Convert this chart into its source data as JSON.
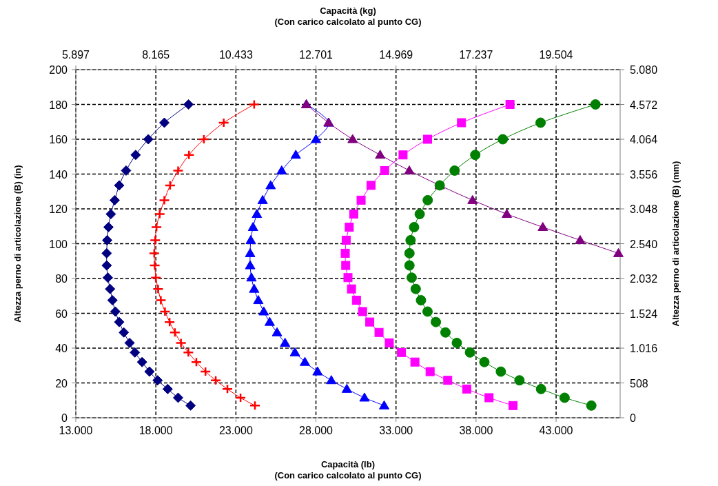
{
  "chart_data": {
    "type": "line",
    "xlabel": "Capacità (lb)\n(Con carico calcolato al punto CG)",
    "x2label": "Capacità (kg)\n(Con carico calcolato al punto CG)",
    "ylabel": "Altezza perno di articolazione (B) (in)",
    "y2label": "Altezza perno di articolazione (B) (mm)",
    "xlim": [
      13000,
      47000
    ],
    "xticks": [
      {
        "value": 13000,
        "label": "13.000"
      },
      {
        "value": 18000,
        "label": "18.000"
      },
      {
        "value": 23000,
        "label": "23.000"
      },
      {
        "value": 28000,
        "label": "28.000"
      },
      {
        "value": 33000,
        "label": "33.000"
      },
      {
        "value": 38000,
        "label": "38.000"
      },
      {
        "value": 43000,
        "label": "43.000"
      }
    ],
    "x2lim": [
      5897,
      21319
    ],
    "x2ticks": [
      {
        "value": 5897,
        "label": "5.897"
      },
      {
        "value": 8165,
        "label": "8.165"
      },
      {
        "value": 10433,
        "label": "10.433"
      },
      {
        "value": 12701,
        "label": "12.701"
      },
      {
        "value": 14969,
        "label": "14.969"
      },
      {
        "value": 17237,
        "label": "17.237"
      },
      {
        "value": 19504,
        "label": "19.504"
      }
    ],
    "ylim": [
      0,
      200
    ],
    "yticks": [
      0,
      20,
      40,
      60,
      80,
      100,
      120,
      140,
      160,
      180,
      200
    ],
    "y2lim": [
      0,
      5080
    ],
    "y2ticks": [
      0,
      508,
      {
        "value": 1016,
        "label": "1.016"
      },
      {
        "value": 1524,
        "label": "1.524"
      },
      {
        "value": 2032,
        "label": "2.032"
      },
      {
        "value": 2540,
        "label": "2.540"
      },
      {
        "value": 3048,
        "label": "3.048"
      },
      {
        "value": 3556,
        "label": "3.556"
      },
      {
        "value": 4064,
        "label": "4.064"
      },
      {
        "value": 4572,
        "label": "4.572"
      },
      {
        "value": 5080,
        "label": "5.080"
      }
    ],
    "grid": true,
    "line_style": "solid",
    "series": [
      {
        "color": "#000080",
        "marker": "diamond",
        "x": [
          20040,
          18530,
          17530,
          16740,
          16140,
          15710,
          15430,
          15190,
          15040,
          14960,
          14930,
          14930,
          15000,
          15140,
          15290,
          15470,
          15710,
          16000,
          16360,
          16690,
          17140,
          17600,
          18110,
          18740,
          19390,
          20170
        ],
        "values": [
          180,
          169.5,
          160,
          151,
          142,
          133.5,
          125,
          117,
          109.5,
          102,
          94.5,
          87.5,
          80.5,
          74,
          67.5,
          61,
          55,
          49,
          43,
          37.5,
          32,
          26.5,
          21.5,
          16.5,
          11.5,
          7
        ]
      },
      {
        "color": "#ff0000",
        "marker": "cross",
        "x": [
          24140,
          22240,
          21000,
          20070,
          19390,
          18890,
          18530,
          18240,
          18040,
          17960,
          17900,
          17930,
          18000,
          18140,
          18310,
          18570,
          18860,
          19190,
          19570,
          20030,
          20530,
          21100,
          21740,
          22470,
          23290,
          24190
        ],
        "values": [
          180,
          169.5,
          160,
          151,
          142,
          133.5,
          125,
          117,
          109.5,
          102,
          94.5,
          87.5,
          80.5,
          74,
          67.5,
          61,
          55,
          49,
          43,
          37.5,
          32,
          26.5,
          21.5,
          16.5,
          11.5,
          7
        ]
      },
      {
        "color": "#0000ff",
        "marker": "triangle",
        "x": [
          27400,
          28790,
          28000,
          26740,
          25860,
          25170,
          24670,
          24310,
          24070,
          23930,
          23890,
          23890,
          23970,
          24140,
          24400,
          24740,
          25110,
          25570,
          26070,
          26690,
          27310,
          28100,
          28960,
          29930,
          31030,
          32260
        ],
        "values": [
          180,
          169.5,
          160,
          151,
          142,
          133.5,
          125,
          117,
          109.5,
          102,
          94.5,
          87.5,
          80.5,
          74,
          67.5,
          61,
          55,
          49,
          43,
          37.5,
          32,
          26.5,
          21.5,
          16.5,
          11.5,
          7
        ]
      },
      {
        "color": "#800080",
        "marker": "triangle",
        "x": [
          27400,
          28790,
          30290,
          32010,
          33830,
          35730,
          37780,
          39920,
          42170,
          44500,
          46890
        ],
        "values": [
          180,
          169.5,
          160,
          151,
          142,
          133.5,
          125,
          117,
          109.5,
          102,
          94.5
        ]
      },
      {
        "color": "#ff00ff",
        "marker": "square",
        "x": [
          40120,
          37090,
          34970,
          33440,
          32290,
          31440,
          30820,
          30360,
          30080,
          29890,
          29830,
          29860,
          30000,
          30220,
          30530,
          30910,
          31360,
          31940,
          32580,
          33340,
          34180,
          35130,
          36230,
          37420,
          38810,
          40310
        ],
        "values": [
          180,
          169.5,
          160,
          151,
          142,
          133.5,
          125,
          117,
          109.5,
          102,
          94.5,
          87.5,
          80.5,
          74,
          67.5,
          61,
          55,
          49,
          43,
          37.5,
          32,
          26.5,
          21.5,
          16.5,
          11.5,
          7
        ]
      },
      {
        "color": "#008000",
        "marker": "circle",
        "x": [
          45460,
          42030,
          39670,
          37950,
          36660,
          35730,
          34980,
          34480,
          34130,
          33910,
          33840,
          33840,
          33980,
          34230,
          34560,
          34970,
          35490,
          36090,
          36800,
          37620,
          38520,
          39550,
          40710,
          42060,
          43530,
          45200
        ],
        "values": [
          180,
          169.5,
          160,
          151,
          142,
          133.5,
          125,
          117,
          109.5,
          102,
          94.5,
          87.5,
          80.5,
          74,
          67.5,
          61,
          55,
          49,
          43,
          37.5,
          32,
          26.5,
          21.5,
          16.5,
          11.5,
          7
        ]
      }
    ]
  }
}
